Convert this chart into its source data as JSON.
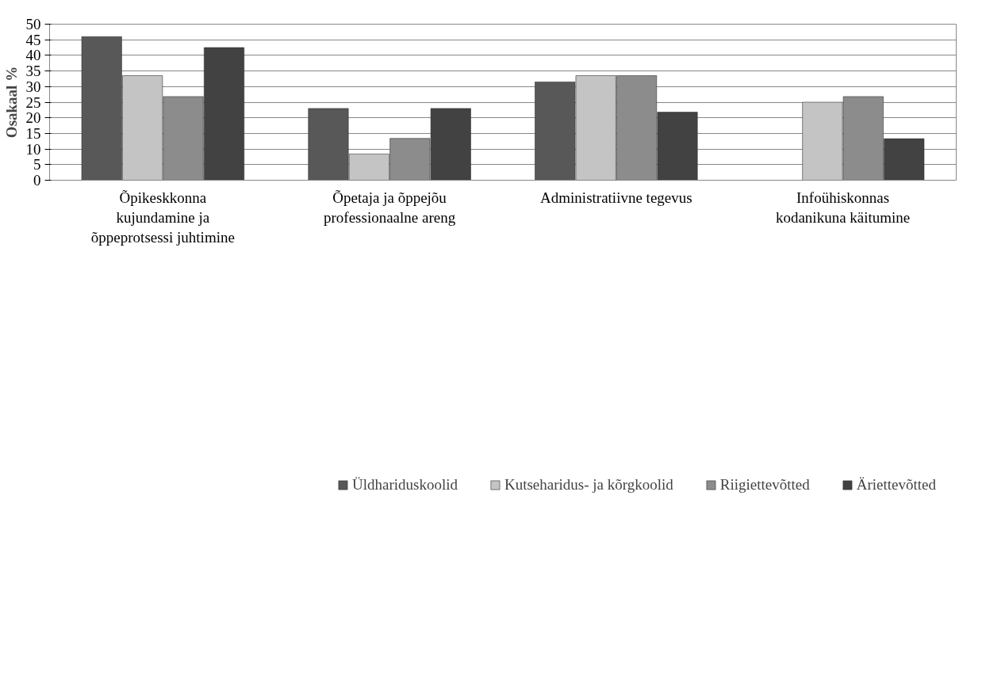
{
  "chart_data": {
    "type": "bar",
    "ylabel": "Osakaal %",
    "categories": [
      "Õpikeskkonna\nkujundamine ja\nõppeprotsessi juhtimine",
      "Õpetaja ja õppejõu\nprofessionaalne areng",
      "Administratiivne tegevus",
      "Infoühiskonnas\nkodanikuna käitumine"
    ],
    "series": [
      {
        "name": "Üldhariduskoolid",
        "color": "#585858",
        "values": [
          46,
          23,
          31.5,
          null
        ]
      },
      {
        "name": "Kutseharidus- ja kõrgkoolid",
        "color": "#c4c4c4",
        "values": [
          33.5,
          8.4,
          33.5,
          25
        ]
      },
      {
        "name": "Riigiettevõtted",
        "color": "#8c8c8c",
        "values": [
          26.8,
          13.4,
          33.5,
          26.8
        ]
      },
      {
        "name": "Äriettevõtted",
        "color": "#424242",
        "values": [
          42.5,
          23,
          21.8,
          13.3
        ]
      }
    ],
    "ylim": [
      0,
      50
    ],
    "yticks": [
      0,
      5,
      10,
      15,
      20,
      25,
      30,
      35,
      40,
      45,
      50
    ],
    "grid": "y",
    "legend": "bottom"
  }
}
